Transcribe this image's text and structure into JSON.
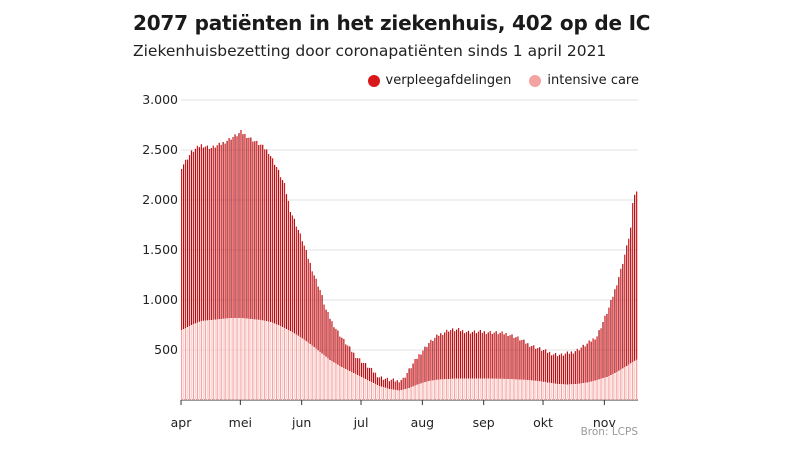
{
  "title": "2077 patiënten in het ziekenhuis, 402 op de IC",
  "subtitle": "Ziekenhuisbezetting door coronapatiënten sinds 1 april 2021",
  "source": "Bron: LCPS",
  "colors": {
    "ward": "#d7191c",
    "ward_dark": "#a50f15",
    "ic": "#f4a3a0",
    "ic_light": "#fbd3d1",
    "grid": "#e3e3e3"
  },
  "chart_data": {
    "type": "bar",
    "stacked": true,
    "ylim": [
      0,
      3000
    ],
    "yticks": [
      500,
      1000,
      1500,
      2000,
      2500,
      3000
    ],
    "ytick_labels": [
      "500",
      "1.000",
      "1.500",
      "2.000",
      "2.500",
      "3.000"
    ],
    "xticks": [
      {
        "label": "apr",
        "day": 0
      },
      {
        "label": "mei",
        "day": 30
      },
      {
        "label": "jun",
        "day": 61
      },
      {
        "label": "jul",
        "day": 91
      },
      {
        "label": "aug",
        "day": 122
      },
      {
        "label": "sep",
        "day": 153
      },
      {
        "label": "okt",
        "day": 183
      },
      {
        "label": "nov",
        "day": 214
      }
    ],
    "days": 230,
    "legend": [
      "verpleegafdelingen",
      "intensive care"
    ],
    "series": [
      {
        "name": "totaal",
        "anchors": [
          [
            0,
            2330
          ],
          [
            5,
            2480
          ],
          [
            10,
            2550
          ],
          [
            15,
            2520
          ],
          [
            20,
            2560
          ],
          [
            25,
            2620
          ],
          [
            28,
            2650
          ],
          [
            30,
            2680
          ],
          [
            33,
            2640
          ],
          [
            36,
            2600
          ],
          [
            40,
            2550
          ],
          [
            44,
            2480
          ],
          [
            48,
            2330
          ],
          [
            52,
            2150
          ],
          [
            55,
            1900
          ],
          [
            58,
            1750
          ],
          [
            61,
            1600
          ],
          [
            64,
            1420
          ],
          [
            67,
            1250
          ],
          [
            70,
            1100
          ],
          [
            73,
            900
          ],
          [
            76,
            780
          ],
          [
            80,
            650
          ],
          [
            84,
            540
          ],
          [
            88,
            440
          ],
          [
            92,
            370
          ],
          [
            96,
            300
          ],
          [
            100,
            230
          ],
          [
            105,
            200
          ],
          [
            109,
            190
          ],
          [
            112,
            210
          ],
          [
            116,
            330
          ],
          [
            120,
            450
          ],
          [
            125,
            570
          ],
          [
            130,
            650
          ],
          [
            135,
            700
          ],
          [
            140,
            700
          ],
          [
            145,
            680
          ],
          [
            150,
            680
          ],
          [
            155,
            680
          ],
          [
            160,
            670
          ],
          [
            165,
            660
          ],
          [
            170,
            620
          ],
          [
            175,
            560
          ],
          [
            180,
            520
          ],
          [
            185,
            480
          ],
          [
            188,
            460
          ],
          [
            192,
            450
          ],
          [
            196,
            470
          ],
          [
            200,
            500
          ],
          [
            205,
            560
          ],
          [
            210,
            640
          ],
          [
            213,
            780
          ],
          [
            216,
            920
          ],
          [
            219,
            1100
          ],
          [
            222,
            1300
          ],
          [
            225,
            1530
          ],
          [
            227,
            1720
          ],
          [
            228,
            1950
          ],
          [
            229,
            2060
          ],
          [
            230,
            2077
          ]
        ]
      },
      {
        "name": "intensive care",
        "anchors": [
          [
            0,
            700
          ],
          [
            5,
            750
          ],
          [
            10,
            790
          ],
          [
            15,
            800
          ],
          [
            20,
            810
          ],
          [
            25,
            820
          ],
          [
            30,
            820
          ],
          [
            35,
            810
          ],
          [
            40,
            800
          ],
          [
            45,
            780
          ],
          [
            50,
            740
          ],
          [
            55,
            690
          ],
          [
            60,
            630
          ],
          [
            65,
            560
          ],
          [
            70,
            480
          ],
          [
            75,
            400
          ],
          [
            80,
            340
          ],
          [
            85,
            290
          ],
          [
            90,
            240
          ],
          [
            95,
            190
          ],
          [
            100,
            140
          ],
          [
            105,
            110
          ],
          [
            110,
            95
          ],
          [
            115,
            120
          ],
          [
            120,
            160
          ],
          [
            125,
            190
          ],
          [
            130,
            205
          ],
          [
            135,
            210
          ],
          [
            140,
            215
          ],
          [
            145,
            215
          ],
          [
            150,
            215
          ],
          [
            155,
            215
          ],
          [
            160,
            212
          ],
          [
            165,
            210
          ],
          [
            170,
            205
          ],
          [
            175,
            200
          ],
          [
            180,
            190
          ],
          [
            185,
            175
          ],
          [
            190,
            160
          ],
          [
            195,
            155
          ],
          [
            200,
            160
          ],
          [
            205,
            175
          ],
          [
            210,
            200
          ],
          [
            215,
            230
          ],
          [
            220,
            280
          ],
          [
            225,
            340
          ],
          [
            228,
            380
          ],
          [
            230,
            402
          ]
        ]
      }
    ]
  }
}
